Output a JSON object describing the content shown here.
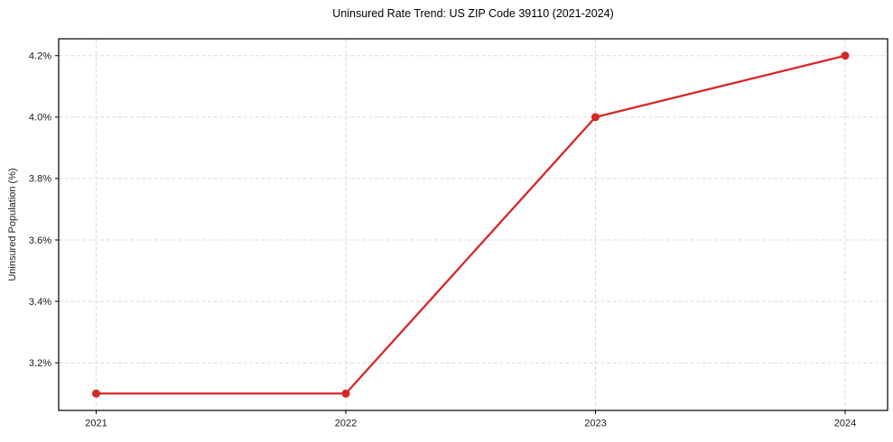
{
  "chart_data": {
    "type": "line",
    "title": "Uninsured Rate Trend: US ZIP Code 39110 (2021-2024)",
    "xlabel": "",
    "ylabel": "Uninsured Population (%)",
    "x": [
      2021,
      2022,
      2023,
      2024
    ],
    "x_tick_labels": [
      "2021",
      "2022",
      "2023",
      "2024"
    ],
    "series": [
      {
        "name": "uninsured-rate",
        "values": [
          3.1,
          3.1,
          4.0,
          4.2
        ],
        "color": "#d62728",
        "marker": "circle"
      }
    ],
    "y_ticks": [
      3.2,
      3.4,
      3.6,
      3.8,
      4.0,
      4.2
    ],
    "y_tick_labels": [
      "3.2%",
      "3.4%",
      "3.6%",
      "3.8%",
      "4.0%",
      "4.2%"
    ],
    "xlim": [
      2020.85,
      2024.17
    ],
    "ylim": [
      3.045,
      4.255
    ],
    "grid": true,
    "grid_style": "dashed",
    "legend": "none",
    "colors": {
      "line": "#d62728",
      "grid": "#d9d9d9",
      "spine": "#000000",
      "text": "#1a1a1a",
      "background": "#ffffff"
    }
  }
}
